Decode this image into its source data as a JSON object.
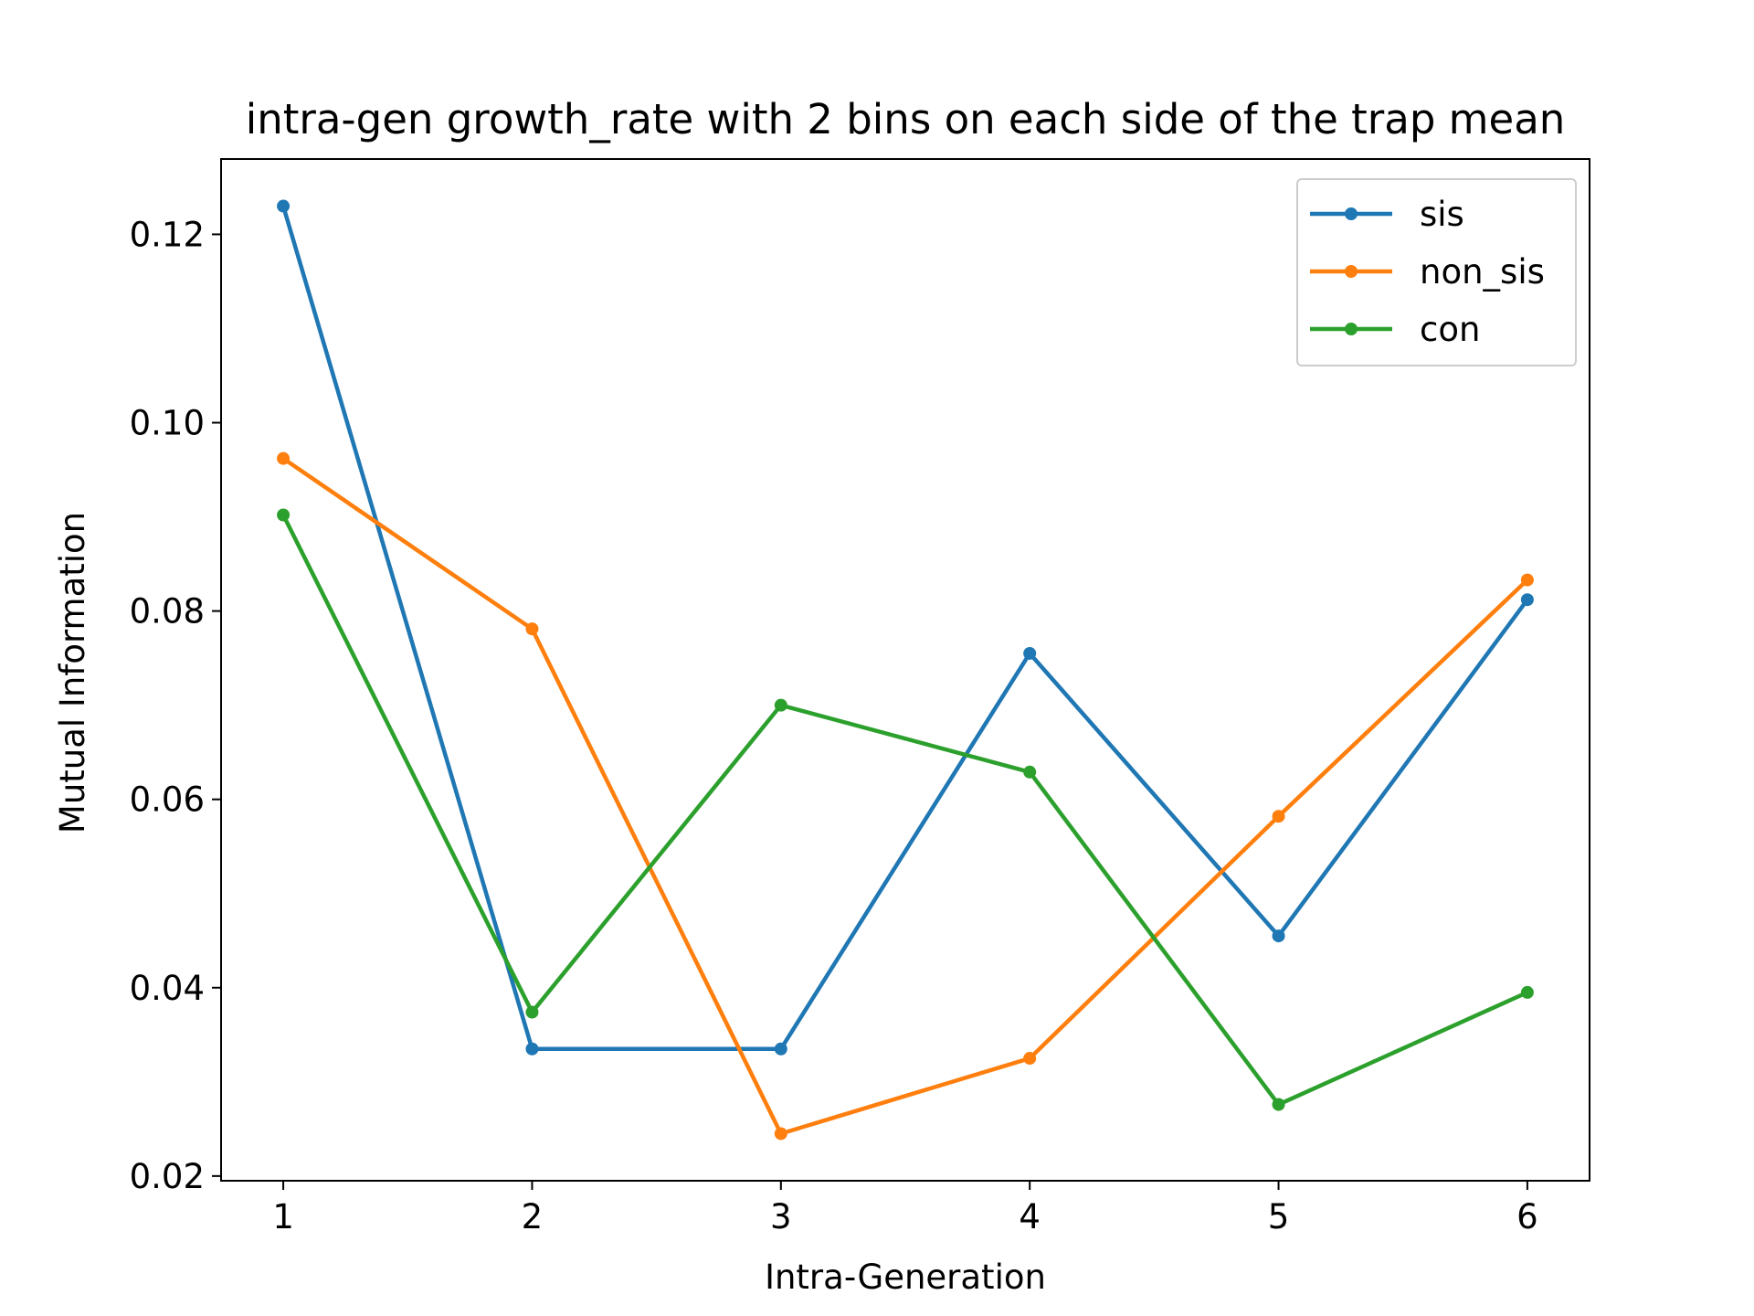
{
  "chart_data": {
    "type": "line",
    "title": "intra-gen growth_rate with 2 bins on each side of the trap mean",
    "xlabel": "Intra-Generation",
    "ylabel": "Mutual Information",
    "x": [
      1,
      2,
      3,
      4,
      5,
      6
    ],
    "xticks": [
      "1",
      "2",
      "3",
      "4",
      "5",
      "6"
    ],
    "yticks": [
      "0.02",
      "0.04",
      "0.06",
      "0.08",
      "0.10",
      "0.12"
    ],
    "xlim": [
      0.75,
      6.25
    ],
    "ylim": [
      0.0195,
      0.128
    ],
    "legend_position": "top-right",
    "grid": false,
    "series": [
      {
        "name": "sis",
        "color": "#1f77b4",
        "values": [
          0.123,
          0.0335,
          0.0335,
          0.0755,
          0.0455,
          0.0812
        ]
      },
      {
        "name": "non_sis",
        "color": "#ff7f0e",
        "values": [
          0.0962,
          0.0781,
          0.0245,
          0.0325,
          0.0582,
          0.0833
        ]
      },
      {
        "name": "con",
        "color": "#2ca02c",
        "values": [
          0.0902,
          0.0374,
          0.07,
          0.0629,
          0.0276,
          0.0395
        ]
      }
    ]
  }
}
